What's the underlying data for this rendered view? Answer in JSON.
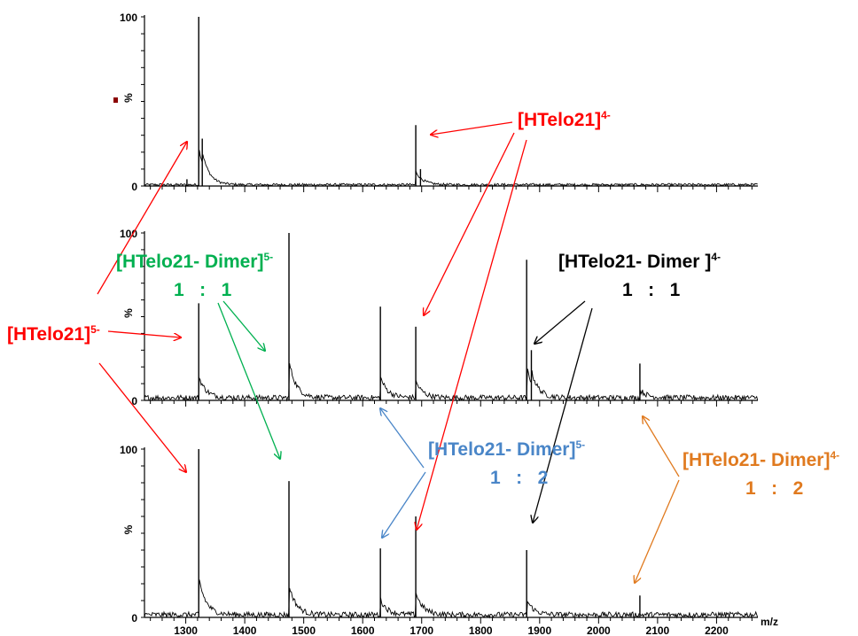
{
  "chart_data": [
    {
      "type": "line",
      "panel": "top",
      "yticks": [
        "100",
        "%",
        "0"
      ],
      "xlim": [
        1230,
        2270
      ],
      "ylim": [
        0,
        100
      ],
      "peaks": [
        {
          "x": 1302,
          "y": 4
        },
        {
          "x": 1322,
          "y": 100
        },
        {
          "x": 1328,
          "y": 28
        },
        {
          "x": 1690,
          "y": 36
        },
        {
          "x": 1698,
          "y": 10
        }
      ]
    },
    {
      "type": "line",
      "panel": "middle",
      "yticks": [
        "100",
        "%",
        "0"
      ],
      "xlim": [
        1230,
        2270
      ],
      "ylim": [
        0,
        100
      ],
      "peaks": [
        {
          "x": 1322,
          "y": 58
        },
        {
          "x": 1475,
          "y": 100
        },
        {
          "x": 1630,
          "y": 56
        },
        {
          "x": 1690,
          "y": 44
        },
        {
          "x": 1878,
          "y": 84
        },
        {
          "x": 1886,
          "y": 30
        },
        {
          "x": 2070,
          "y": 22
        }
      ]
    },
    {
      "type": "line",
      "panel": "bottom",
      "yticks": [
        "100",
        "%",
        "0"
      ],
      "xlim": [
        1230,
        2270
      ],
      "ylim": [
        0,
        100
      ],
      "xlabel": "m/z",
      "xticks": [
        1300,
        1400,
        1500,
        1600,
        1700,
        1800,
        1900,
        2000,
        2100,
        2200
      ],
      "peaks": [
        {
          "x": 1322,
          "y": 100
        },
        {
          "x": 1475,
          "y": 81
        },
        {
          "x": 1630,
          "y": 41
        },
        {
          "x": 1690,
          "y": 60
        },
        {
          "x": 1878,
          "y": 40
        },
        {
          "x": 2070,
          "y": 13
        }
      ]
    }
  ],
  "annotations": {
    "htelo21_4": {
      "base": "[HTelo21]",
      "sup": "4-",
      "color": "#ff0000"
    },
    "htelo21_5": {
      "base": "[HTelo21]",
      "sup": "5-",
      "color": "#ff0000"
    },
    "dimer5_green": {
      "base": "[HTelo21- Dimer]",
      "sup": "5-",
      "ratio": "1   :   1",
      "color": "#00b050"
    },
    "dimer4_black": {
      "base": "[HTelo21- Dimer ]",
      "sup": "4-",
      "ratio": "1   :   1",
      "color": "#000000"
    },
    "dimer5_blue": {
      "base": "[HTelo21- Dimer]",
      "sup": "5-",
      "ratio": "1   :   2",
      "color": "#4a86c8"
    },
    "dimer4_orange": {
      "base": "[HTelo21- Dimer]",
      "sup": "4-",
      "ratio": "1   :   2",
      "color": "#e07a1f"
    }
  }
}
